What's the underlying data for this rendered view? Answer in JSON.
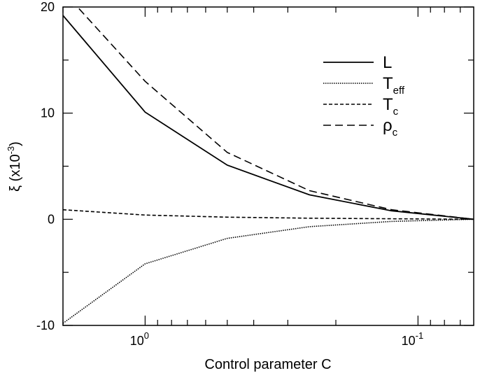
{
  "chart_data": {
    "type": "line",
    "xlabel": "Control parameter C",
    "ylabel": "ξ (x10",
    "ylabel_exp": "-3",
    "ylabel_close": ")",
    "x_scale": "log-reversed",
    "xlim": [
      2.0,
      0.0625
    ],
    "ylim": [
      -10,
      20
    ],
    "grid": false,
    "legend_position": "top-right",
    "x_ticks": [
      {
        "value": 1.0,
        "base": "10",
        "exp": "0"
      },
      {
        "value": 0.1,
        "base": "10",
        "exp": "-1"
      }
    ],
    "y_ticks": [
      {
        "value": 20,
        "label": "20"
      },
      {
        "value": 10,
        "label": "10"
      },
      {
        "value": 0,
        "label": "0"
      },
      {
        "value": -10,
        "label": "-10"
      }
    ],
    "x": [
      2.0,
      1.0,
      0.5,
      0.25,
      0.125,
      0.0625
    ],
    "series": [
      {
        "name": "L",
        "style": "solid",
        "values": [
          19.2,
          10.1,
          5.1,
          2.3,
          0.8,
          0.0
        ]
      },
      {
        "name": "T",
        "sub": "eff",
        "style": "dotted",
        "values": [
          -9.8,
          -4.2,
          -1.8,
          -0.7,
          -0.2,
          0.0
        ]
      },
      {
        "name": "T",
        "sub": "c",
        "style": "short-dash",
        "values": [
          0.9,
          0.4,
          0.2,
          0.1,
          0.05,
          0.0
        ]
      },
      {
        "name": "ρ",
        "sub": "c",
        "style": "long-dash",
        "values": [
          21.5,
          13.0,
          6.3,
          2.7,
          0.9,
          0.0
        ]
      }
    ],
    "colors": {
      "line": "#000000",
      "frame": "#000000"
    }
  }
}
